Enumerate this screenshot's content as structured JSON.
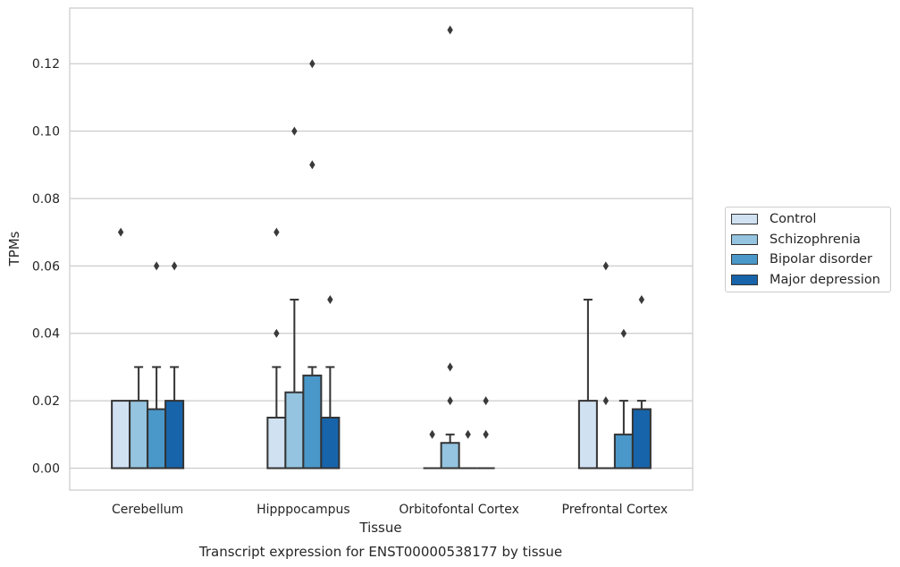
{
  "chart_data": {
    "type": "boxplot",
    "title": "Transcript expression for ENST00000538177 by tissue",
    "xlabel": "Tissue",
    "ylabel": "TPMs",
    "ylim": [
      -0.0065,
      0.1365
    ],
    "yticks": [
      0.0,
      0.02,
      0.04,
      0.06,
      0.08,
      0.1,
      0.12
    ],
    "ytick_labels": [
      "0.00",
      "0.02",
      "0.04",
      "0.06",
      "0.08",
      "0.10",
      "0.12"
    ],
    "grid": "horizontal",
    "legend_position": "right",
    "categories": [
      "Cerebellum",
      "Hipppocampus",
      "Orbitofontal Cortex",
      "Prefrontal Cortex"
    ],
    "series": [
      {
        "name": "Control",
        "color": "#d0e1f2",
        "boxes": [
          {
            "q1": 0.0,
            "median": 0.0,
            "q3": 0.02,
            "whisker_low": 0.0,
            "whisker_high": 0.02,
            "outliers": [
              0.07
            ]
          },
          {
            "q1": 0.0,
            "median": 0.0,
            "q3": 0.015,
            "whisker_low": 0.0,
            "whisker_high": 0.03,
            "outliers": [
              0.04,
              0.07
            ]
          },
          {
            "q1": 0.0,
            "median": 0.0,
            "q3": 0.0,
            "whisker_low": 0.0,
            "whisker_high": 0.0,
            "outliers": [
              0.01
            ]
          },
          {
            "q1": 0.0,
            "median": 0.0,
            "q3": 0.02,
            "whisker_low": 0.0,
            "whisker_high": 0.05,
            "outliers": []
          }
        ]
      },
      {
        "name": "Schizophrenia",
        "color": "#94c4df",
        "boxes": [
          {
            "q1": 0.0,
            "median": 0.0,
            "q3": 0.02,
            "whisker_low": 0.0,
            "whisker_high": 0.03,
            "outliers": []
          },
          {
            "q1": 0.0,
            "median": 0.0,
            "q3": 0.0225,
            "whisker_low": 0.0,
            "whisker_high": 0.05,
            "outliers": [
              0.1
            ]
          },
          {
            "q1": 0.0,
            "median": 0.0,
            "q3": 0.0075,
            "whisker_low": 0.0,
            "whisker_high": 0.01,
            "outliers": [
              0.02,
              0.03,
              0.13
            ]
          },
          {
            "q1": 0.0,
            "median": 0.0,
            "q3": 0.0,
            "whisker_low": 0.0,
            "whisker_high": 0.0,
            "outliers": [
              0.02,
              0.06
            ]
          }
        ]
      },
      {
        "name": "Bipolar disorder",
        "color": "#4a98c9",
        "boxes": [
          {
            "q1": 0.0,
            "median": 0.0,
            "q3": 0.0175,
            "whisker_low": 0.0,
            "whisker_high": 0.03,
            "outliers": [
              0.06
            ]
          },
          {
            "q1": 0.0,
            "median": 0.0,
            "q3": 0.0275,
            "whisker_low": 0.0,
            "whisker_high": 0.03,
            "outliers": [
              0.09,
              0.12
            ]
          },
          {
            "q1": 0.0,
            "median": 0.0,
            "q3": 0.0,
            "whisker_low": 0.0,
            "whisker_high": 0.0,
            "outliers": [
              0.01
            ]
          },
          {
            "q1": 0.0,
            "median": 0.0,
            "q3": 0.01,
            "whisker_low": 0.0,
            "whisker_high": 0.02,
            "outliers": [
              0.04
            ]
          }
        ]
      },
      {
        "name": "Major depression",
        "color": "#1764ab",
        "boxes": [
          {
            "q1": 0.0,
            "median": 0.0,
            "q3": 0.02,
            "whisker_low": 0.0,
            "whisker_high": 0.03,
            "outliers": [
              0.06
            ]
          },
          {
            "q1": 0.0,
            "median": 0.0,
            "q3": 0.015,
            "whisker_low": 0.0,
            "whisker_high": 0.03,
            "outliers": [
              0.05
            ]
          },
          {
            "q1": 0.0,
            "median": 0.0,
            "q3": 0.0,
            "whisker_low": 0.0,
            "whisker_high": 0.0,
            "outliers": [
              0.01,
              0.02
            ]
          },
          {
            "q1": 0.0,
            "median": 0.0,
            "q3": 0.0175,
            "whisker_low": 0.0,
            "whisker_high": 0.02,
            "outliers": [
              0.05
            ]
          }
        ]
      }
    ]
  },
  "legend": {
    "items": [
      {
        "label": "Control",
        "color": "#d0e1f2"
      },
      {
        "label": "Schizophrenia",
        "color": "#94c4df"
      },
      {
        "label": "Bipolar disorder",
        "color": "#4a98c9"
      },
      {
        "label": "Major depression",
        "color": "#1764ab"
      }
    ]
  }
}
